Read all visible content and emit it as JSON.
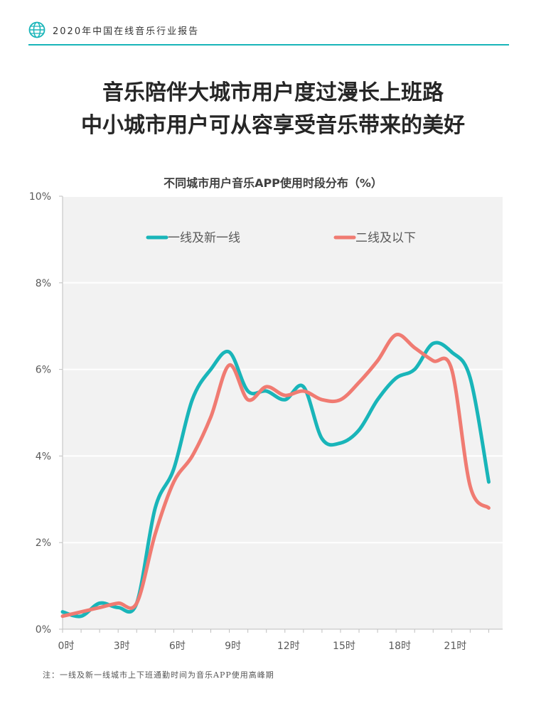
{
  "header": {
    "report_title": "2020年中国在线音乐行业报告",
    "icon": "globe-icon",
    "accent_color": "#19b5b9"
  },
  "headline": {
    "line1": "音乐陪伴大城市用户度过漫长上班路",
    "line2": "中小城市用户可从容享受音乐带来的美好"
  },
  "footnote": "注：一线及新一线城市上下班通勤时间为音乐APP使用高峰期",
  "chart_data": {
    "type": "line",
    "title": "不同城市用户音乐APP使用时段分布（%）",
    "x": [
      0,
      1,
      2,
      3,
      4,
      5,
      6,
      7,
      8,
      9,
      10,
      11,
      12,
      13,
      14,
      15,
      16,
      17,
      18,
      19,
      20,
      21,
      22,
      23
    ],
    "x_tick_values": [
      0,
      3,
      6,
      9,
      12,
      15,
      18,
      21
    ],
    "x_tick_labels": [
      "0时",
      "3时",
      "6时",
      "9时",
      "12时",
      "15时",
      "18时",
      "21时"
    ],
    "y_ticks": [
      0,
      2,
      4,
      6,
      8,
      10
    ],
    "y_tick_labels": [
      "0%",
      "2%",
      "4%",
      "6%",
      "8%",
      "10%"
    ],
    "ylim": [
      0,
      10
    ],
    "grid": "horizontal",
    "legend_position": "top",
    "series": [
      {
        "name": "一线及新一线",
        "color": "#19b5b9",
        "values": [
          0.4,
          0.3,
          0.6,
          0.5,
          0.6,
          2.8,
          3.7,
          5.3,
          6.0,
          6.4,
          5.5,
          5.5,
          5.3,
          5.6,
          4.4,
          4.3,
          4.6,
          5.3,
          5.8,
          6.0,
          6.6,
          6.4,
          5.8,
          3.4
        ]
      },
      {
        "name": "二线及以下",
        "color": "#f07b72",
        "values": [
          0.3,
          0.4,
          0.5,
          0.6,
          0.6,
          2.2,
          3.4,
          4.0,
          4.9,
          6.1,
          5.3,
          5.6,
          5.4,
          5.5,
          5.3,
          5.3,
          5.7,
          6.2,
          6.8,
          6.5,
          6.2,
          6.0,
          3.3,
          2.8
        ]
      }
    ]
  }
}
